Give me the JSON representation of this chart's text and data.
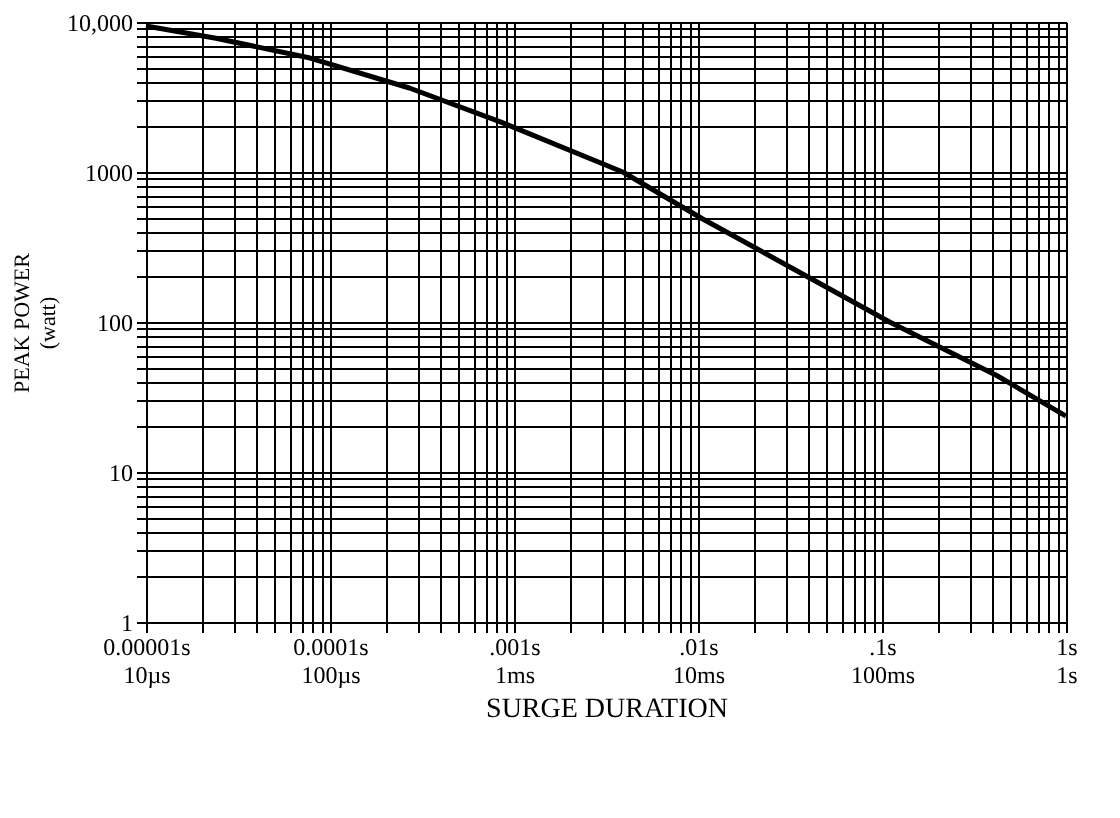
{
  "chart_data": {
    "type": "line",
    "xlabel": "SURGE DURATION",
    "ylabel": "PEAK POWER\n(watt)",
    "log": "xy",
    "grid": true,
    "line_style": "solid",
    "marker": "none",
    "annotations": [
      "10µs",
      "100µs",
      "1ms",
      "10ms",
      "100ms",
      "1s"
    ],
    "x": [
      1e-05,
      2.4e-05,
      7.8e-05,
      0.00027,
      0.00085,
      0.0039,
      0.0105,
      0.041,
      0.11,
      0.42,
      1
    ],
    "series": [
      {
        "color": "#000000",
        "values": [
          9400,
          7800,
          5750,
          3630,
          2150,
          1000,
          490,
          195,
          100,
          44,
          23.6
        ]
      }
    ],
    "xlim": [
      1e-05,
      1
    ],
    "ylim": [
      1,
      10000
    ],
    "xticks": [
      {
        "value": 1e-05,
        "label": "0.00001s"
      },
      {
        "value": 2e-05,
        "label": null
      },
      {
        "value": 3e-05,
        "label": null
      },
      {
        "value": 4e-05,
        "label": null
      },
      {
        "value": 5e-05,
        "label": null
      },
      {
        "value": 6e-05,
        "label": null
      },
      {
        "value": 7e-05,
        "label": null
      },
      {
        "value": 8e-05,
        "label": null
      },
      {
        "value": 9e-05,
        "label": null
      },
      {
        "value": 0.0001,
        "label": "0.0001s"
      },
      {
        "value": 0.0002,
        "label": null
      },
      {
        "value": 0.0003,
        "label": null
      },
      {
        "value": 0.0004,
        "label": null
      },
      {
        "value": 0.0005,
        "label": null
      },
      {
        "value": 0.0006,
        "label": null
      },
      {
        "value": 0.0007,
        "label": null
      },
      {
        "value": 0.0008,
        "label": null
      },
      {
        "value": 0.0009,
        "label": null
      },
      {
        "value": 0.001,
        "label": ".001s"
      },
      {
        "value": 0.002,
        "label": null
      },
      {
        "value": 0.003,
        "label": null
      },
      {
        "value": 0.004,
        "label": null
      },
      {
        "value": 0.005,
        "label": null
      },
      {
        "value": 0.006,
        "label": null
      },
      {
        "value": 0.007,
        "label": null
      },
      {
        "value": 0.008,
        "label": null
      },
      {
        "value": 0.009,
        "label": null
      },
      {
        "value": 0.01,
        "label": ".01s"
      },
      {
        "value": 0.02,
        "label": null
      },
      {
        "value": 0.03,
        "label": null
      },
      {
        "value": 0.04,
        "label": null
      },
      {
        "value": 0.05,
        "label": null
      },
      {
        "value": 0.06,
        "label": null
      },
      {
        "value": 0.07,
        "label": null
      },
      {
        "value": 0.08,
        "label": null
      },
      {
        "value": 0.09,
        "label": null
      },
      {
        "value": 0.1,
        "label": ".1s"
      },
      {
        "value": 0.2,
        "label": null
      },
      {
        "value": 0.3,
        "label": null
      },
      {
        "value": 0.4,
        "label": null
      },
      {
        "value": 0.5,
        "label": null
      },
      {
        "value": 0.6,
        "label": null
      },
      {
        "value": 0.7,
        "label": null
      },
      {
        "value": 0.8,
        "label": null
      },
      {
        "value": 0.9,
        "label": null
      },
      {
        "value": 1,
        "label": "1s"
      }
    ],
    "yticks": [
      {
        "value": 1,
        "label": "1"
      },
      {
        "value": 2,
        "label": null
      },
      {
        "value": 3,
        "label": null
      },
      {
        "value": 4,
        "label": null
      },
      {
        "value": 5,
        "label": null
      },
      {
        "value": 6,
        "label": null
      },
      {
        "value": 7,
        "label": null
      },
      {
        "value": 8,
        "label": null
      },
      {
        "value": 9,
        "label": null
      },
      {
        "value": 10,
        "label": "10"
      },
      {
        "value": 20,
        "label": null
      },
      {
        "value": 30,
        "label": null
      },
      {
        "value": 40,
        "label": null
      },
      {
        "value": 50,
        "label": null
      },
      {
        "value": 60,
        "label": null
      },
      {
        "value": 70,
        "label": null
      },
      {
        "value": 80,
        "label": null
      },
      {
        "value": 90,
        "label": null
      },
      {
        "value": 100,
        "label": "100"
      },
      {
        "value": 200,
        "label": null
      },
      {
        "value": 300,
        "label": null
      },
      {
        "value": 400,
        "label": null
      },
      {
        "value": 500,
        "label": null
      },
      {
        "value": 600,
        "label": null
      },
      {
        "value": 700,
        "label": null
      },
      {
        "value": 800,
        "label": null
      },
      {
        "value": 900,
        "label": null
      },
      {
        "value": 1000,
        "label": "1000"
      },
      {
        "value": 2000,
        "label": null
      },
      {
        "value": 3000,
        "label": null
      },
      {
        "value": 4000,
        "label": null
      },
      {
        "value": 5000,
        "label": null
      },
      {
        "value": 6000,
        "label": null
      },
      {
        "value": 7000,
        "label": null
      },
      {
        "value": 8000,
        "label": null
      },
      {
        "value": 9000,
        "label": null
      },
      {
        "value": 10000,
        "label": "10,000"
      }
    ]
  }
}
